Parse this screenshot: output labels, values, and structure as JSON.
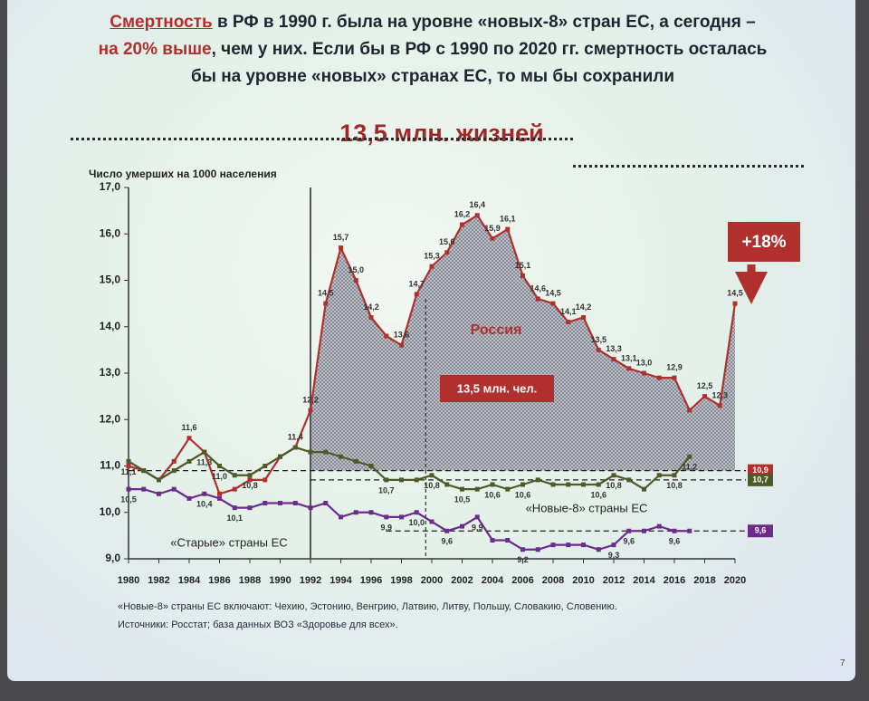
{
  "chart_data": {
    "type": "line",
    "title_lines": [
      [
        {
          "text": "Смертность",
          "highlight": true
        },
        {
          "text": " в РФ в 1990 г. была на уровне «новых-8» стран ЕС, а сегодня –"
        }
      ],
      [
        {
          "text": "на 20% выше",
          "highlight": true
        },
        {
          "text": ", чем у них. Если бы в РФ с 1990 по 2020 гг. смертность осталась"
        }
      ],
      [
        {
          "text": "бы на уровне «новых» странах ЕС, то мы бы сохранили"
        }
      ]
    ],
    "headline": "13,5 млн. жизней",
    "y_label": "Число умерших на 1000 населения",
    "x": [
      1980,
      1981,
      1982,
      1983,
      1984,
      1985,
      1986,
      1987,
      1988,
      1989,
      1990,
      1991,
      1992,
      1993,
      1994,
      1995,
      1996,
      1997,
      1998,
      1999,
      2000,
      2001,
      2002,
      2003,
      2004,
      2005,
      2006,
      2007,
      2008,
      2009,
      2010,
      2011,
      2012,
      2013,
      2014,
      2015,
      2016,
      2017,
      2018,
      2019,
      2020
    ],
    "xlim": [
      1980,
      2020
    ],
    "xticks": [
      1980,
      1982,
      1984,
      1986,
      1988,
      1990,
      1992,
      1994,
      1996,
      1998,
      2000,
      2002,
      2004,
      2006,
      2008,
      2010,
      2012,
      2014,
      2016,
      2018,
      2020
    ],
    "ylim": [
      9,
      17
    ],
    "yticks": [
      {
        "value": 9,
        "label": "9,0"
      },
      {
        "value": 10,
        "label": "10,0"
      },
      {
        "value": 11,
        "label": "11,0"
      },
      {
        "value": 12,
        "label": "12,0"
      },
      {
        "value": 13,
        "label": "13,0"
      },
      {
        "value": 14,
        "label": "14,0"
      },
      {
        "value": 15,
        "label": "15,0"
      },
      {
        "value": 16,
        "label": "16,0"
      },
      {
        "value": 17,
        "label": "17,0"
      }
    ],
    "series": [
      {
        "name": "Россия",
        "color": "#b0302e",
        "label_pos": "above",
        "values": [
          11.0,
          10.9,
          10.7,
          11.1,
          11.6,
          11.3,
          10.4,
          10.5,
          10.7,
          10.7,
          11.2,
          11.4,
          12.2,
          14.5,
          15.7,
          15.0,
          14.2,
          13.8,
          13.6,
          14.7,
          15.3,
          15.6,
          16.2,
          16.4,
          15.9,
          16.1,
          15.1,
          14.6,
          14.5,
          14.1,
          14.2,
          13.5,
          13.3,
          13.1,
          13.0,
          12.9,
          12.9,
          12.2,
          12.5,
          12.3,
          14.5
        ],
        "value_labels": [
          null,
          null,
          null,
          null,
          "11,6",
          null,
          null,
          null,
          null,
          null,
          null,
          "11,4",
          "12,2",
          "14,5",
          "15,7",
          "15,0",
          "14,2",
          null,
          "13,6",
          "14,7",
          "15,3",
          "15,6",
          "16,2",
          "16,4",
          "15,9",
          "16,1",
          "15,1",
          "14,6",
          "14,5",
          "14,1",
          "14,2",
          "13,5",
          "13,3",
          "13,1",
          "13,0",
          null,
          "12,9",
          null,
          "12,5",
          "12,3",
          "14,5"
        ]
      },
      {
        "name": "«Новые-8» страны ЕС",
        "color": "#4f5a28",
        "label_pos": "below",
        "values": [
          11.1,
          10.9,
          10.7,
          10.9,
          11.1,
          11.3,
          11.0,
          10.8,
          10.8,
          11.0,
          11.2,
          11.4,
          11.3,
          11.3,
          11.2,
          11.1,
          11.0,
          10.7,
          10.7,
          10.7,
          10.8,
          10.6,
          10.5,
          10.5,
          10.6,
          10.5,
          10.6,
          10.7,
          10.6,
          10.6,
          10.6,
          10.6,
          10.8,
          10.7,
          10.5,
          10.8,
          10.8,
          11.2,
          null,
          null,
          null
        ],
        "value_labels": [
          "11,1",
          null,
          null,
          null,
          null,
          "11,3",
          "11,0",
          null,
          "10,8",
          null,
          null,
          null,
          null,
          null,
          null,
          null,
          null,
          "10,7",
          null,
          null,
          "10,8",
          null,
          "10,5",
          null,
          "10,6",
          null,
          "10,6",
          null,
          null,
          null,
          null,
          "10,6",
          "10,8",
          null,
          null,
          null,
          "10,8",
          "11,2",
          null,
          null,
          null
        ]
      },
      {
        "name": "«Старые» страны ЕС",
        "color": "#6b2c8c",
        "label_pos": "below",
        "values": [
          10.5,
          10.5,
          10.4,
          10.5,
          10.3,
          10.4,
          10.3,
          10.1,
          10.1,
          10.2,
          10.2,
          10.2,
          10.1,
          10.2,
          9.9,
          10.0,
          10.0,
          9.9,
          9.9,
          10.0,
          9.8,
          9.6,
          9.7,
          9.9,
          9.4,
          9.4,
          9.2,
          9.2,
          9.3,
          9.3,
          9.3,
          9.2,
          9.3,
          9.6,
          9.6,
          9.7,
          9.6,
          9.6,
          null,
          null,
          null
        ],
        "value_labels": [
          "10,5",
          null,
          null,
          null,
          null,
          "10,4",
          null,
          "10,1",
          null,
          null,
          null,
          null,
          null,
          null,
          null,
          null,
          null,
          "9,9",
          null,
          "10,0",
          null,
          "9,6",
          null,
          "9,9",
          null,
          null,
          "9,2",
          null,
          null,
          null,
          null,
          null,
          "9,3",
          "9,6",
          null,
          null,
          "9,6",
          null,
          null,
          null,
          null
        ]
      }
    ],
    "reference_lines": [
      {
        "value": 10.9,
        "label": "10,9",
        "color": "#b0302e",
        "start": 1980
      },
      {
        "value": 10.7,
        "label": "10,7",
        "color": "#4f5a28",
        "start": 1992
      },
      {
        "value": 9.6,
        "label": "9,6",
        "color": "#6b2c8c",
        "start": 1997
      }
    ],
    "vlines": [
      {
        "x": 1992,
        "style": "solid"
      },
      {
        "x": 1999.6,
        "style": "dashed"
      }
    ],
    "annotations": [
      "+18%",
      "13,5 млн. чел."
    ],
    "footnotes": [
      "«Новые-8» страны ЕС включают: Чехию, Эстонию, Венгрию, Латвию, Литву, Польшу, Словакию, Словению.",
      "Источники: Росстат; база данных ВОЗ «Здоровье для всех»."
    ],
    "page_number": "7"
  }
}
